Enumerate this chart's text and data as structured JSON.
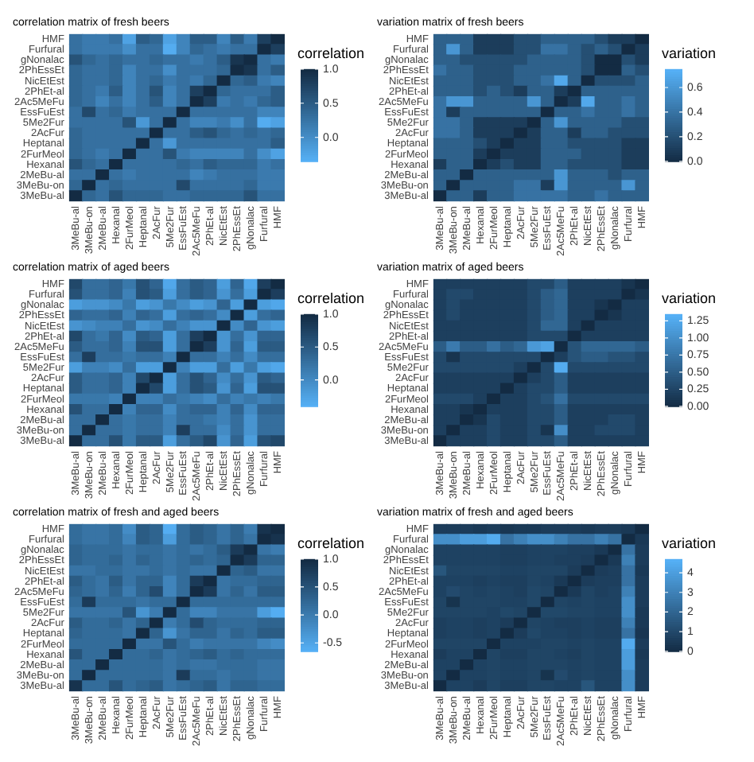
{
  "chart_data": [
    {
      "type": "heatmap",
      "title": "correlation matrix of fresh beers",
      "clabel": "correlation",
      "colors": [
        "#56b1f7",
        "#132b43"
      ],
      "clim": [
        -0.35,
        1
      ],
      "cticks": [
        {
          "value": 0,
          "label": "0.0"
        },
        {
          "value": 0.5,
          "label": "0.5"
        },
        {
          "value": 1,
          "label": "1.0"
        }
      ],
      "categories": [
        "3MeBu-al",
        "3MeBu-on",
        "2MeBu-al",
        "Hexanal",
        "2FurMeol",
        "Heptanal",
        "2AcFur",
        "5Me2Fur",
        "EssFuEst",
        "2Ac5MeFu",
        "2PhEt-al",
        "NicEtEst",
        "2PhEssEt",
        "gNonalac",
        "Furfural",
        "HMF"
      ],
      "y_categories": [
        "HMF",
        "Furfural",
        "gNonalac",
        "2PhEssEt",
        "NicEtEst",
        "2PhEt-al",
        "2Ac5MeFu",
        "EssFuEst",
        "5Me2Fur",
        "2AcFur",
        "Heptanal",
        "2FurMeol",
        "Hexanal",
        "2MeBu-al",
        "3MeBu-on",
        "3MeBu-al"
      ],
      "cells": [
        [
          0.3,
          0.2,
          0.2,
          0.3,
          -0.2,
          0.5,
          0.4,
          -0.2,
          0.1,
          0.5,
          0.5,
          0.1,
          0.5,
          0.2,
          0.8,
          1
        ],
        [
          0.3,
          0.2,
          0.2,
          0.2,
          0,
          0.3,
          0.3,
          -0.3,
          0.1,
          0.4,
          0.3,
          0.2,
          0.3,
          0.3,
          1,
          0.8
        ],
        [
          0.6,
          0.4,
          0.3,
          0.4,
          0.3,
          0.3,
          0.4,
          0.3,
          0.3,
          0.2,
          0.3,
          0.5,
          0.9,
          1,
          0.3,
          0.2
        ],
        [
          0.4,
          0.3,
          0.3,
          0.4,
          0.1,
          0.3,
          0.3,
          0,
          0.3,
          0.3,
          0.3,
          0.4,
          1,
          0.9,
          0.3,
          0.5
        ],
        [
          0.4,
          0.3,
          0.3,
          0.4,
          0.1,
          0.3,
          0.4,
          0.2,
          0.3,
          0.2,
          0.4,
          1,
          0.4,
          0.5,
          0.2,
          0.1
        ],
        [
          0.4,
          0.3,
          0.2,
          0.5,
          0.1,
          0.3,
          0.6,
          0.1,
          0.3,
          0.8,
          1,
          0.4,
          0.3,
          0.3,
          0.3,
          0.5
        ],
        [
          0.4,
          0.3,
          0.1,
          0.3,
          0.1,
          0.3,
          0.5,
          0.1,
          0.3,
          1,
          0.8,
          0.2,
          0.3,
          0.2,
          0.4,
          0.5
        ],
        [
          0.3,
          0.7,
          0.3,
          0.4,
          0.2,
          0.3,
          0.3,
          0.3,
          1,
          0.3,
          0.3,
          0.3,
          0.3,
          0.3,
          0.1,
          0.1
        ],
        [
          0.3,
          0.3,
          0.3,
          0.3,
          0.6,
          -0.1,
          0.3,
          1,
          0.3,
          0.1,
          0.1,
          0.2,
          0,
          0.3,
          -0.3,
          -0.2
        ],
        [
          0.4,
          0.3,
          0.3,
          0.3,
          0.3,
          0.3,
          1,
          0.3,
          0.3,
          0.5,
          0.6,
          0.4,
          0.3,
          0.4,
          0.3,
          0.4
        ],
        [
          0.4,
          0.3,
          0.3,
          0.3,
          0.3,
          1,
          0.3,
          -0.1,
          0.3,
          0.3,
          0.3,
          0.3,
          0.3,
          0.3,
          0.3,
          0.5
        ],
        [
          0.4,
          0.3,
          0.2,
          0.3,
          1,
          0.3,
          0.3,
          0.6,
          0.2,
          0.1,
          0.1,
          0.1,
          0.1,
          0.3,
          0,
          -0.2
        ],
        [
          0.6,
          0.4,
          0.3,
          1,
          0.3,
          0.3,
          0.3,
          0.3,
          0.4,
          0.3,
          0.5,
          0.4,
          0.4,
          0.4,
          0.2,
          0.3
        ],
        [
          0.3,
          0.3,
          1,
          0.3,
          0.2,
          0.3,
          0.3,
          0.3,
          0.3,
          0.1,
          0.2,
          0.3,
          0.3,
          0.3,
          0.2,
          0.2
        ],
        [
          0.4,
          1,
          0.3,
          0.4,
          0.3,
          0.3,
          0.3,
          0.3,
          0.7,
          0.3,
          0.3,
          0.3,
          0.3,
          0.4,
          0.2,
          0.2
        ],
        [
          1,
          0.4,
          0.3,
          0.6,
          0.4,
          0.4,
          0.4,
          0.3,
          0.3,
          0.4,
          0.4,
          0.4,
          0.4,
          0.6,
          0.3,
          0.3
        ]
      ]
    },
    {
      "type": "heatmap",
      "title": "variation matrix of fresh beers",
      "clabel": "variation",
      "colors": [
        "#132b43",
        "#56b1f7"
      ],
      "clim": [
        0,
        0.75
      ],
      "cticks": [
        {
          "value": 0,
          "label": "0.0"
        },
        {
          "value": 0.2,
          "label": "0.2"
        },
        {
          "value": 0.4,
          "label": "0.4"
        },
        {
          "value": 0.6,
          "label": "0.6"
        }
      ],
      "categories": [
        "3MeBu-al",
        "3MeBu-on",
        "2MeBu-al",
        "Hexanal",
        "2FurMeol",
        "Heptanal",
        "2AcFur",
        "5Me2Fur",
        "EssFuEst",
        "2Ac5MeFu",
        "2PhEt-al",
        "NicEtEst",
        "2PhEssEt",
        "gNonalac",
        "Furfural",
        "HMF"
      ],
      "y_categories": [
        "HMF",
        "Furfural",
        "gNonalac",
        "2PhEssEt",
        "NicEtEst",
        "2PhEt-al",
        "2Ac5MeFu",
        "EssFuEst",
        "5Me2Fur",
        "2AcFur",
        "Heptanal",
        "2FurMeol",
        "Hexanal",
        "2MeBu-al",
        "3MeBu-on",
        "3MeBu-al"
      ],
      "cells": [
        [
          0.3,
          0.3,
          0.3,
          0.1,
          0.1,
          0.1,
          0.2,
          0.2,
          0.3,
          0.3,
          0.3,
          0.3,
          0.2,
          0.1,
          0.1,
          0
        ],
        [
          0.3,
          0.6,
          0.3,
          0.1,
          0.1,
          0.1,
          0.2,
          0.2,
          0.4,
          0.4,
          0.3,
          0.2,
          0.3,
          0.2,
          0,
          0.1
        ],
        [
          0.3,
          0.3,
          0.2,
          0.2,
          0.2,
          0.2,
          0.2,
          0.3,
          0.3,
          0.3,
          0.3,
          0.2,
          0,
          0,
          0.2,
          0.1
        ],
        [
          0.4,
          0.3,
          0.3,
          0.2,
          0.2,
          0.2,
          0.3,
          0.3,
          0.3,
          0.3,
          0.3,
          0.2,
          0,
          0,
          0.3,
          0.2
        ],
        [
          0.3,
          0.3,
          0.3,
          0.2,
          0.2,
          0.2,
          0.3,
          0.3,
          0.4,
          0.7,
          0.3,
          0,
          0.2,
          0.2,
          0.2,
          0.3
        ],
        [
          0.3,
          0.3,
          0.3,
          0.2,
          0.3,
          0.2,
          0.1,
          0.3,
          0.3,
          0.1,
          0,
          0.3,
          0.3,
          0.3,
          0.3,
          0.3
        ],
        [
          0.4,
          0.6,
          0.6,
          0.3,
          0.3,
          0.3,
          0.3,
          0.6,
          0.3,
          0,
          0.1,
          0.7,
          0.3,
          0.3,
          0.4,
          0.3
        ],
        [
          0.4,
          0.1,
          0.3,
          0.3,
          0.3,
          0.3,
          0.3,
          0.3,
          0,
          0.3,
          0.3,
          0.4,
          0.3,
          0.3,
          0.4,
          0.3
        ],
        [
          0.4,
          0.4,
          0.3,
          0.1,
          0.1,
          0.1,
          0.1,
          0,
          0.3,
          0.6,
          0.3,
          0.3,
          0.3,
          0.3,
          0.2,
          0.2
        ],
        [
          0.4,
          0.4,
          0.3,
          0.1,
          0.1,
          0.1,
          0,
          0.1,
          0.3,
          0.3,
          0.1,
          0.3,
          0.3,
          0.2,
          0.2,
          0.2
        ],
        [
          0.3,
          0.3,
          0.3,
          0.2,
          0.1,
          0,
          0.1,
          0.1,
          0.3,
          0.3,
          0.2,
          0.2,
          0.2,
          0.2,
          0.1,
          0.1
        ],
        [
          0.3,
          0.3,
          0.3,
          0.1,
          0,
          0.1,
          0.1,
          0.1,
          0.3,
          0.3,
          0.3,
          0.2,
          0.2,
          0.2,
          0.1,
          0.1
        ],
        [
          0.1,
          0.3,
          0.3,
          0,
          0.1,
          0.2,
          0.1,
          0.1,
          0.3,
          0.3,
          0.2,
          0.2,
          0.2,
          0.2,
          0.1,
          0.1
        ],
        [
          0.3,
          0.3,
          0,
          0.3,
          0.3,
          0.3,
          0.3,
          0.3,
          0.3,
          0.6,
          0.3,
          0.3,
          0.3,
          0.2,
          0.3,
          0.3
        ],
        [
          0.3,
          0,
          0.3,
          0.3,
          0.3,
          0.3,
          0.4,
          0.4,
          0.1,
          0.6,
          0.3,
          0.3,
          0.3,
          0.3,
          0.6,
          0.3
        ],
        [
          0,
          0.3,
          0.3,
          0.1,
          0.3,
          0.3,
          0.4,
          0.4,
          0.4,
          0.4,
          0.3,
          0.3,
          0.4,
          0.3,
          0.3,
          0.3
        ]
      ]
    },
    {
      "type": "heatmap",
      "title": "correlation matrix of aged beers",
      "clabel": "correlation",
      "colors": [
        "#56b1f7",
        "#132b43"
      ],
      "clim": [
        -0.4,
        1
      ],
      "cticks": [
        {
          "value": 0,
          "label": "0.0"
        },
        {
          "value": 0.5,
          "label": "0.5"
        },
        {
          "value": 1,
          "label": "1.0"
        }
      ],
      "categories": [
        "3MeBu-al",
        "3MeBu-on",
        "2MeBu-al",
        "Hexanal",
        "2FurMeol",
        "Heptanal",
        "2AcFur",
        "5Me2Fur",
        "EssFuEst",
        "2Ac5MeFu",
        "2PhEt-al",
        "NicEtEst",
        "2PhEssEt",
        "gNonalac",
        "Furfural",
        "HMF"
      ],
      "y_categories": [
        "HMF",
        "Furfural",
        "gNonalac",
        "2PhEssEt",
        "NicEtEst",
        "2PhEt-al",
        "2Ac5MeFu",
        "EssFuEst",
        "5Me2Fur",
        "2AcFur",
        "Heptanal",
        "2FurMeol",
        "Hexanal",
        "2MeBu-al",
        "3MeBu-on",
        "3MeBu-al"
      ],
      "cells": [
        [
          0.7,
          0.3,
          0.3,
          0.4,
          0.2,
          0.6,
          0.4,
          -0.3,
          0.3,
          0.5,
          0.4,
          -0.2,
          0.4,
          -0.3,
          0.8,
          1
        ],
        [
          0.6,
          0.3,
          0.3,
          0.4,
          0.1,
          0.6,
          0.5,
          -0.2,
          0.3,
          0.5,
          0.4,
          -0.1,
          0.3,
          -0.2,
          1,
          0.8
        ],
        [
          -0.2,
          -0.1,
          -0.1,
          0,
          0.2,
          -0.2,
          -0.1,
          0.2,
          0,
          -0.2,
          -0.1,
          0.4,
          -0.2,
          1,
          -0.2,
          -0.3
        ],
        [
          0.4,
          0.3,
          0.3,
          0.4,
          0.1,
          0.4,
          0.3,
          -0.2,
          0.3,
          0.4,
          0.3,
          0,
          1,
          -0.2,
          0.3,
          0.4
        ],
        [
          -0.1,
          0,
          0.1,
          0.1,
          0.3,
          -0.1,
          0,
          0.3,
          0.1,
          -0.1,
          -0.1,
          1,
          0,
          0.4,
          -0.1,
          -0.2
        ],
        [
          0.7,
          0.3,
          0.2,
          0.4,
          0,
          0.5,
          0.4,
          -0.2,
          0.3,
          0.8,
          1,
          -0.1,
          0.3,
          -0.1,
          0.4,
          0.4
        ],
        [
          0.5,
          0.3,
          0.3,
          0.4,
          0.1,
          0.6,
          0.6,
          -0.2,
          0.3,
          1,
          0.8,
          -0.1,
          0.4,
          -0.2,
          0.5,
          0.5
        ],
        [
          0.3,
          0.8,
          0.3,
          0.3,
          0.2,
          0.3,
          0.3,
          0.1,
          1,
          0.3,
          0.3,
          0.1,
          0.3,
          0,
          0.3,
          0.3
        ],
        [
          -0.2,
          0.1,
          0.1,
          0,
          0.3,
          -0.2,
          -0.2,
          1,
          0.1,
          -0.2,
          -0.2,
          0.3,
          -0.2,
          0.2,
          -0.2,
          -0.3
        ],
        [
          0.5,
          0.3,
          0.3,
          0.4,
          0.1,
          0.7,
          1,
          -0.2,
          0.3,
          0.6,
          0.4,
          0,
          0.3,
          -0.1,
          0.5,
          0.4
        ],
        [
          0.5,
          0.3,
          0.3,
          0.4,
          0.1,
          1,
          0.7,
          -0.2,
          0.3,
          0.6,
          0.5,
          -0.1,
          0.4,
          -0.2,
          0.6,
          0.6
        ],
        [
          0.2,
          0.2,
          0.2,
          0.1,
          1,
          0.1,
          0.1,
          0.3,
          0.2,
          0.1,
          0,
          0.3,
          0.1,
          0.2,
          0.1,
          0.2
        ],
        [
          0.6,
          0.3,
          0.3,
          1,
          0.1,
          0.4,
          0.4,
          0,
          0.3,
          0.4,
          0.4,
          0.1,
          0.4,
          0,
          0.4,
          0.4
        ],
        [
          0.3,
          0.3,
          1,
          0.3,
          0.2,
          0.3,
          0.3,
          0.1,
          0.3,
          0.3,
          0.2,
          0.1,
          0.3,
          -0.1,
          0.3,
          0.3
        ],
        [
          0.3,
          1,
          0.3,
          0.3,
          0.2,
          0.3,
          0.3,
          0.1,
          0.8,
          0.3,
          0.3,
          0,
          0.3,
          -0.1,
          0.3,
          0.3
        ],
        [
          1,
          0.3,
          0.3,
          0.6,
          0.2,
          0.5,
          0.5,
          -0.2,
          0.3,
          0.5,
          0.7,
          -0.1,
          0.4,
          -0.2,
          0.6,
          0.7
        ]
      ]
    },
    {
      "type": "heatmap",
      "title": "variation matrix of aged beers",
      "clabel": "variation",
      "colors": [
        "#132b43",
        "#56b1f7"
      ],
      "clim": [
        0,
        1.35
      ],
      "cticks": [
        {
          "value": 0,
          "label": "0.00"
        },
        {
          "value": 0.25,
          "label": "0.25"
        },
        {
          "value": 0.5,
          "label": "0.50"
        },
        {
          "value": 0.75,
          "label": "0.75"
        },
        {
          "value": 1,
          "label": "1.00"
        },
        {
          "value": 1.25,
          "label": "1.25"
        }
      ],
      "categories": [
        "3MeBu-al",
        "3MeBu-on",
        "2MeBu-al",
        "Hexanal",
        "2FurMeol",
        "Heptanal",
        "2AcFur",
        "5Me2Fur",
        "EssFuEst",
        "2Ac5MeFu",
        "2PhEt-al",
        "NicEtEst",
        "2PhEssEt",
        "gNonalac",
        "Furfural",
        "HMF"
      ],
      "y_categories": [
        "HMF",
        "Furfural",
        "gNonalac",
        "2PhEssEt",
        "NicEtEst",
        "2PhEt-al",
        "2Ac5MeFu",
        "EssFuEst",
        "5Me2Fur",
        "2AcFur",
        "Heptanal",
        "2FurMeol",
        "Hexanal",
        "2MeBu-al",
        "3MeBu-on",
        "3MeBu-al"
      ],
      "cells": [
        [
          0.2,
          0.2,
          0.2,
          0.2,
          0.2,
          0.2,
          0.2,
          0.3,
          0.3,
          0.5,
          0.2,
          0.2,
          0.2,
          0.2,
          0.1,
          0
        ],
        [
          0.2,
          0.3,
          0.3,
          0.2,
          0.2,
          0.2,
          0.2,
          0.3,
          0.5,
          0.6,
          0.2,
          0.2,
          0.2,
          0.2,
          0,
          0.1
        ],
        [
          0.2,
          0.3,
          0.2,
          0.2,
          0.2,
          0.2,
          0.2,
          0.3,
          0.5,
          0.6,
          0.2,
          0.2,
          0.1,
          0,
          0.2,
          0.2
        ],
        [
          0.2,
          0.3,
          0.2,
          0.2,
          0.2,
          0.2,
          0.2,
          0.3,
          0.5,
          0.6,
          0.2,
          0.2,
          0,
          0.1,
          0.2,
          0.2
        ],
        [
          0.2,
          0.2,
          0.2,
          0.2,
          0.2,
          0.2,
          0.2,
          0.3,
          0.6,
          0.6,
          0.2,
          0,
          0.2,
          0.2,
          0.2,
          0.2
        ],
        [
          0.2,
          0.2,
          0.2,
          0.2,
          0.2,
          0.2,
          0.2,
          0.3,
          0.3,
          0.3,
          0,
          0.2,
          0.2,
          0.2,
          0.2,
          0.2
        ],
        [
          0.5,
          0.8,
          0.5,
          0.5,
          0.7,
          0.5,
          0.6,
          1.1,
          1.2,
          0,
          0.4,
          0.6,
          0.6,
          0.6,
          0.6,
          0.5
        ],
        [
          0.3,
          0.1,
          0.3,
          0.3,
          0.3,
          0.3,
          0.3,
          0.3,
          0,
          0.2,
          0.4,
          0.5,
          0.5,
          0.4,
          0.4,
          0.3
        ],
        [
          0.3,
          0.3,
          0.3,
          0.3,
          0.3,
          0.3,
          0.2,
          0,
          0.3,
          1.3,
          0.3,
          0.3,
          0.3,
          0.3,
          0.3,
          0.3
        ],
        [
          0.2,
          0.2,
          0.2,
          0.2,
          0.2,
          0.2,
          0,
          0.2,
          0.3,
          0.5,
          0.2,
          0.2,
          0.2,
          0.2,
          0.2,
          0.2
        ],
        [
          0.2,
          0.2,
          0.2,
          0.2,
          0.2,
          0,
          0.2,
          0.3,
          0.3,
          0.5,
          0.2,
          0.2,
          0.2,
          0.2,
          0.2,
          0.2
        ],
        [
          0.3,
          0.3,
          0.3,
          0.2,
          0,
          0.2,
          0.2,
          0.3,
          0.4,
          0.7,
          0.3,
          0.3,
          0.3,
          0.3,
          0.3,
          0.3
        ],
        [
          0.2,
          0.2,
          0.1,
          0,
          0.2,
          0.2,
          0.2,
          0.3,
          0.3,
          0.5,
          0.2,
          0.2,
          0.2,
          0.2,
          0.2,
          0.2
        ],
        [
          0.2,
          0.2,
          0,
          0.1,
          0.3,
          0.2,
          0.2,
          0.3,
          0.3,
          0.5,
          0.2,
          0.2,
          0.2,
          0.3,
          0.3,
          0.2
        ],
        [
          0.2,
          0,
          0.2,
          0.2,
          0.3,
          0.2,
          0.2,
          0.3,
          0.1,
          1,
          0.2,
          0.2,
          0.3,
          0.3,
          0.3,
          0.2
        ],
        [
          0,
          0.2,
          0.2,
          0.2,
          0.3,
          0.2,
          0.2,
          0.3,
          0.3,
          0.5,
          0.2,
          0.2,
          0.2,
          0.2,
          0.2,
          0.2
        ]
      ]
    },
    {
      "type": "heatmap",
      "title": "correlation matrix of fresh and aged beers",
      "clabel": "correlation",
      "colors": [
        "#56b1f7",
        "#132b43"
      ],
      "clim": [
        -0.65,
        1
      ],
      "cticks": [
        {
          "value": -0.5,
          "label": "-0.5"
        },
        {
          "value": 0,
          "label": "0.0"
        },
        {
          "value": 0.5,
          "label": "0.5"
        },
        {
          "value": 1,
          "label": "1.0"
        }
      ],
      "categories": [
        "3MeBu-al",
        "3MeBu-on",
        "2MeBu-al",
        "Hexanal",
        "2FurMeol",
        "Heptanal",
        "2AcFur",
        "5Me2Fur",
        "EssFuEst",
        "2Ac5MeFu",
        "2PhEt-al",
        "NicEtEst",
        "2PhEssEt",
        "gNonalac",
        "Furfural",
        "HMF"
      ],
      "y_categories": [
        "HMF",
        "Furfural",
        "gNonalac",
        "2PhEssEt",
        "NicEtEst",
        "2PhEt-al",
        "2Ac5MeFu",
        "EssFuEst",
        "5Me2Fur",
        "2AcFur",
        "Heptanal",
        "2FurMeol",
        "Hexanal",
        "2MeBu-al",
        "3MeBu-on",
        "3MeBu-al"
      ],
      "cells": [
        [
          0.2,
          0.1,
          0.1,
          0.2,
          -0.2,
          0.4,
          0.3,
          -0.6,
          0.2,
          0.4,
          0.3,
          0.1,
          0.3,
          0,
          0.9,
          1
        ],
        [
          0.2,
          0.1,
          0.1,
          0.2,
          -0.1,
          0.4,
          0.3,
          -0.4,
          0.2,
          0.4,
          0.3,
          0.1,
          0.3,
          0.1,
          1,
          0.9
        ],
        [
          0.3,
          0.2,
          0.2,
          0.2,
          0.1,
          0.2,
          0.2,
          0.1,
          0.2,
          0.1,
          0.2,
          0.4,
          0.8,
          1,
          0.1,
          0
        ],
        [
          0.3,
          0.2,
          0.2,
          0.3,
          0.1,
          0.3,
          0.2,
          0.1,
          0.2,
          0.3,
          0.2,
          0.3,
          1,
          0.8,
          0.3,
          0.3
        ],
        [
          0.1,
          0.1,
          0.2,
          0.2,
          0.1,
          0.1,
          0.2,
          0.1,
          0.2,
          0.1,
          0.1,
          1,
          0.3,
          0.4,
          0.1,
          0.1
        ],
        [
          0.4,
          0.2,
          0.1,
          0.4,
          0.1,
          0.3,
          0.3,
          -0.1,
          0.2,
          0.8,
          1,
          0.1,
          0.2,
          0.2,
          0.3,
          0.3
        ],
        [
          0.3,
          0.2,
          0.1,
          0.3,
          0,
          0.3,
          0.6,
          -0.1,
          0.2,
          1,
          0.8,
          0.1,
          0.3,
          0.1,
          0.4,
          0.4
        ],
        [
          0.2,
          0.8,
          0.2,
          0.2,
          0.2,
          0.1,
          0.2,
          0.2,
          1,
          0.2,
          0.2,
          0.2,
          0.2,
          0.2,
          0.2,
          0.2
        ],
        [
          0.1,
          0.1,
          0.1,
          0.1,
          0.5,
          -0.3,
          0,
          1,
          0.2,
          -0.1,
          -0.1,
          0.1,
          0.1,
          0.1,
          -0.4,
          -0.6
        ],
        [
          0.4,
          0.2,
          0.2,
          0.3,
          0.1,
          0.3,
          1,
          0,
          0.2,
          0.6,
          0.3,
          0.2,
          0.2,
          0.2,
          0.3,
          0.3
        ],
        [
          0.3,
          0.2,
          0.2,
          0.2,
          0.1,
          1,
          0.3,
          -0.3,
          0.1,
          0.3,
          0.3,
          0.1,
          0.3,
          0.2,
          0.4,
          0.4
        ],
        [
          0.2,
          0.2,
          0.2,
          0.2,
          1,
          0.1,
          0.1,
          0.5,
          0.2,
          0,
          0.1,
          0.1,
          0.1,
          0.1,
          -0.1,
          -0.2
        ],
        [
          0.5,
          0.2,
          0.2,
          1,
          0.2,
          0.2,
          0.3,
          0.1,
          0.2,
          0.3,
          0.4,
          0.2,
          0.3,
          0.2,
          0.2,
          0.2
        ],
        [
          0.2,
          0.2,
          1,
          0.2,
          0.2,
          0.2,
          0.2,
          0.1,
          0.2,
          0.1,
          0.1,
          0.2,
          0.2,
          0.2,
          0.1,
          0.1
        ],
        [
          0.2,
          1,
          0.2,
          0.2,
          0.2,
          0.2,
          0.2,
          0.1,
          0.8,
          0.2,
          0.2,
          0.1,
          0.2,
          0.2,
          0.1,
          0.1
        ],
        [
          0.9,
          0.2,
          0.2,
          0.5,
          0.2,
          0.3,
          0.4,
          0.1,
          0.2,
          0.3,
          0.4,
          0.1,
          0.3,
          0.3,
          0.2,
          0.2
        ]
      ]
    },
    {
      "type": "heatmap",
      "title": "variation matrix of fresh and aged beers",
      "clabel": "variation",
      "colors": [
        "#132b43",
        "#56b1f7"
      ],
      "clim": [
        0,
        4.7
      ],
      "cticks": [
        0,
        1,
        2,
        3,
        4
      ],
      "categories": [
        "3MeBu-al",
        "3MeBu-on",
        "2MeBu-al",
        "Hexanal",
        "2FurMeol",
        "Heptanal",
        "2AcFur",
        "5Me2Fur",
        "EssFuEst",
        "2Ac5MeFu",
        "2PhEt-al",
        "NicEtEst",
        "2PhEssEt",
        "gNonalac",
        "Furfural",
        "HMF"
      ],
      "y_categories": [
        "HMF",
        "Furfural",
        "gNonalac",
        "2PhEssEt",
        "NicEtEst",
        "2PhEt-al",
        "2Ac5MeFu",
        "EssFuEst",
        "5Me2Fur",
        "2AcFur",
        "Heptanal",
        "2FurMeol",
        "Hexanal",
        "2MeBu-al",
        "3MeBu-on",
        "3MeBu-al"
      ],
      "cells": [
        [
          0.6,
          0.6,
          0.6,
          0.5,
          0.6,
          0.4,
          0.5,
          0.5,
          0.6,
          0.6,
          0.6,
          0.5,
          0.6,
          0.6,
          0.5,
          0
        ],
        [
          3.5,
          3.5,
          4,
          4,
          4.5,
          2.5,
          3,
          3.5,
          3.5,
          3,
          2.5,
          2.5,
          3,
          2.5,
          0,
          0.5
        ],
        [
          0.8,
          0.8,
          0.8,
          0.8,
          0.8,
          0.7,
          0.7,
          0.8,
          0.8,
          0.8,
          0.7,
          0.7,
          0.5,
          0,
          2.5,
          0.6
        ],
        [
          0.8,
          0.8,
          0.8,
          0.8,
          0.8,
          0.7,
          0.7,
          0.8,
          0.8,
          0.7,
          0.7,
          0.6,
          0,
          0.5,
          3,
          0.6
        ],
        [
          1.5,
          0.9,
          0.9,
          0.9,
          0.9,
          0.8,
          0.8,
          0.9,
          0.9,
          0.9,
          0.6,
          0,
          0.6,
          0.7,
          2.5,
          0.5
        ],
        [
          0.8,
          0.8,
          0.8,
          0.7,
          0.8,
          0.7,
          0.7,
          0.9,
          0.8,
          0.5,
          0,
          0.6,
          0.7,
          0.7,
          2.5,
          0.6
        ],
        [
          0.8,
          1.1,
          0.9,
          0.8,
          0.9,
          0.8,
          0.7,
          1,
          0.9,
          0,
          0.5,
          0.9,
          0.7,
          0.8,
          3,
          0.6
        ],
        [
          0.9,
          0.3,
          0.9,
          0.9,
          0.9,
          0.8,
          0.8,
          1,
          0,
          0.9,
          0.8,
          0.9,
          0.8,
          0.8,
          3.5,
          0.6
        ],
        [
          0.9,
          0.9,
          0.9,
          0.9,
          0.8,
          1,
          0.9,
          0,
          1,
          1,
          0.9,
          0.9,
          0.8,
          0.8,
          3.5,
          0.5
        ],
        [
          0.7,
          0.8,
          0.8,
          0.7,
          0.8,
          0.6,
          0,
          0.9,
          0.8,
          0.7,
          0.7,
          0.8,
          0.7,
          0.7,
          3,
          0.5
        ],
        [
          0.7,
          0.8,
          0.8,
          0.7,
          0.8,
          0,
          0.6,
          1,
          0.8,
          0.8,
          0.7,
          0.8,
          0.7,
          0.7,
          2.5,
          0.4
        ],
        [
          0.9,
          0.9,
          0.9,
          0.9,
          0,
          0.8,
          0.8,
          0.8,
          0.9,
          0.9,
          0.8,
          0.9,
          0.8,
          0.8,
          4.5,
          0.6
        ],
        [
          0.6,
          0.8,
          0.8,
          0,
          0.9,
          0.7,
          0.7,
          0.9,
          0.9,
          0.8,
          0.7,
          0.9,
          0.8,
          0.8,
          4,
          0.5
        ],
        [
          0.8,
          0.8,
          0,
          0.8,
          0.9,
          0.8,
          0.8,
          0.9,
          0.9,
          0.9,
          0.8,
          0.9,
          0.8,
          0.8,
          4,
          0.6
        ],
        [
          0.8,
          0,
          0.8,
          0.8,
          0.9,
          0.8,
          0.8,
          0.9,
          0.3,
          1.1,
          0.8,
          0.9,
          0.8,
          0.8,
          3.5,
          0.6
        ],
        [
          0,
          0.8,
          0.8,
          0.6,
          0.9,
          0.7,
          0.7,
          0.9,
          0.9,
          0.8,
          0.8,
          1.5,
          0.8,
          0.8,
          3.5,
          0.6
        ]
      ]
    }
  ]
}
